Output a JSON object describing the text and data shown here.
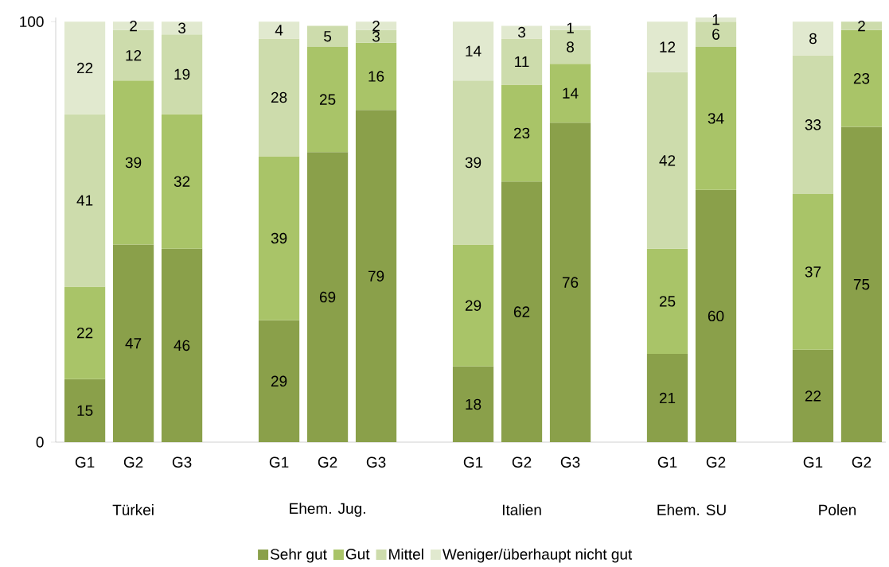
{
  "chart_data": {
    "type": "bar",
    "stacked": true,
    "categories": [
      "G1",
      "G2",
      "G3",
      null,
      "G1",
      "G2",
      "G3",
      null,
      "G1",
      "G2",
      "G3",
      null,
      "G1",
      "G2",
      null,
      "G1",
      "G2"
    ],
    "annotations": [
      "Türkei",
      "Ehem. Jug.",
      "Italien",
      "Ehem. SU",
      "Polen"
    ],
    "series": [
      {
        "name": "Sehr gut",
        "color": "#8aa04a",
        "values": [
          15,
          47,
          46,
          null,
          29,
          69,
          79,
          null,
          18,
          62,
          76,
          null,
          21,
          60,
          null,
          22,
          75
        ]
      },
      {
        "name": "Gut",
        "color": "#a9c468",
        "values": [
          22,
          39,
          32,
          null,
          39,
          25,
          16,
          null,
          29,
          23,
          14,
          null,
          25,
          34,
          null,
          37,
          23
        ]
      },
      {
        "name": "Mittel",
        "color": "#cddcac",
        "values": [
          41,
          12,
          19,
          null,
          28,
          5,
          3,
          null,
          39,
          11,
          8,
          null,
          42,
          6,
          null,
          33,
          2
        ]
      },
      {
        "name": "Weniger/überhaupt nicht gut",
        "color": "#e1e9cf",
        "values": [
          22,
          2,
          3,
          null,
          4,
          null,
          2,
          null,
          14,
          3,
          1,
          null,
          12,
          1,
          null,
          8,
          null
        ]
      }
    ],
    "ylim": [
      0,
      101
    ],
    "yticks": [
      0,
      100
    ],
    "data_labels": true,
    "legend": "bottom"
  }
}
